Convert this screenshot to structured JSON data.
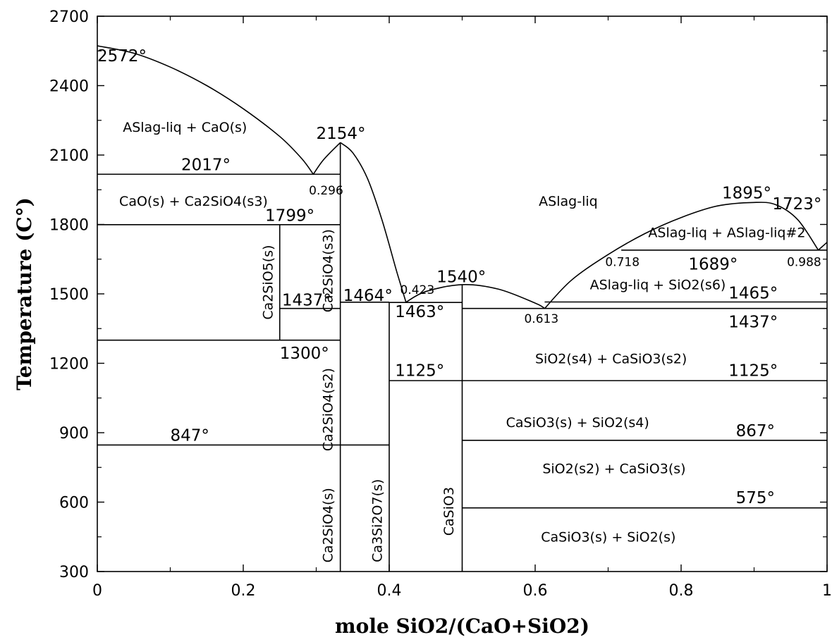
{
  "chart_data": {
    "type": "line",
    "title": "",
    "xlabel": "mole SiO2/(CaO+SiO2)",
    "ylabel": "Temperature (C°)",
    "xlim": [
      0,
      1
    ],
    "ylim": [
      300,
      2700
    ],
    "x_ticks": [
      "0",
      "0.2",
      "0.4",
      "0.6",
      "0.8",
      "1"
    ],
    "y_ticks": [
      "300",
      "600",
      "900",
      "1200",
      "1500",
      "1800",
      "2100",
      "2400",
      "2700"
    ],
    "grid": false,
    "series": [
      {
        "x": [
          0,
          0.05,
          0.1,
          0.15,
          0.2,
          0.25,
          0.28,
          0.296
        ],
        "y": [
          2572,
          2540,
          2480,
          2400,
          2300,
          2180,
          2085,
          2017
        ]
      },
      {
        "x": [
          0.296,
          0.31,
          0.333
        ],
        "y": [
          2017,
          2080,
          2154
        ]
      },
      {
        "x": [
          0.333,
          0.35,
          0.37,
          0.39,
          0.41,
          0.423
        ],
        "y": [
          2154,
          2110,
          2000,
          1820,
          1600,
          1464
        ]
      },
      {
        "x": [
          0.423,
          0.45,
          0.5,
          0.55,
          0.6,
          0.613
        ],
        "y": [
          1464,
          1510,
          1540,
          1520,
          1460,
          1437
        ]
      },
      {
        "x": [
          0.613,
          0.65,
          0.7,
          0.75,
          0.8,
          0.85,
          0.9,
          0.93,
          0.96,
          0.988
        ],
        "y": [
          1437,
          1560,
          1670,
          1760,
          1830,
          1880,
          1895,
          1885,
          1820,
          1689
        ]
      },
      {
        "x": [
          0.988,
          1
        ],
        "y": [
          1689,
          1723
        ]
      }
    ],
    "isotherms": [
      {
        "y": 2017,
        "x0": 0,
        "x1": 0.333
      },
      {
        "y": 1799,
        "x0": 0,
        "x1": 0.333
      },
      {
        "y": 1437,
        "x0": 0.25,
        "x1": 0.333
      },
      {
        "y": 1300,
        "x0": 0,
        "x1": 0.333
      },
      {
        "y": 847,
        "x0": 0,
        "x1": 0.4
      },
      {
        "y": 1464,
        "x0": 0.333,
        "x1": 0.4
      },
      {
        "y": 1463,
        "x0": 0.4,
        "x1": 0.5
      },
      {
        "y": 1689,
        "x0": 0.718,
        "x1": 1
      },
      {
        "y": 1465,
        "x0": 0.613,
        "x1": 1
      },
      {
        "y": 1437,
        "x0": 0.5,
        "x1": 1
      },
      {
        "y": 1125,
        "x0": 0.4,
        "x1": 1
      },
      {
        "y": 867,
        "x0": 0.5,
        "x1": 1
      },
      {
        "y": 575,
        "x0": 0.5,
        "x1": 1
      }
    ],
    "compound_lines": [
      {
        "x": 0.25,
        "y0": 1300,
        "y1": 1799
      },
      {
        "x": 0.333,
        "y0": 300,
        "y1": 2154
      },
      {
        "x": 0.4,
        "y0": 300,
        "y1": 1464
      },
      {
        "x": 0.5,
        "y0": 300,
        "y1": 1540
      }
    ],
    "annotations": [
      {
        "text": "2572°",
        "x": 0.0,
        "y": 2505
      },
      {
        "text": "2154°",
        "x": 0.3,
        "y": 2170
      },
      {
        "text": "2017°",
        "x": 0.115,
        "y": 2035
      },
      {
        "text": "0.296",
        "x": 0.29,
        "y": 1930
      },
      {
        "text": "1799°",
        "x": 0.23,
        "y": 1815
      },
      {
        "text": "1437°",
        "x": 0.253,
        "y": 1450
      },
      {
        "text": "1464°",
        "x": 0.337,
        "y": 1470
      },
      {
        "text": "0.423",
        "x": 0.415,
        "y": 1500
      },
      {
        "text": "1540°",
        "x": 0.465,
        "y": 1550
      },
      {
        "text": "1463°",
        "x": 0.408,
        "y": 1400
      },
      {
        "text": "1300°",
        "x": 0.25,
        "y": 1220
      },
      {
        "text": "1125°",
        "x": 0.408,
        "y": 1145
      },
      {
        "text": "847°",
        "x": 0.1,
        "y": 865
      },
      {
        "text": "0.613",
        "x": 0.585,
        "y": 1375
      },
      {
        "text": "0.718",
        "x": 0.696,
        "y": 1620
      },
      {
        "text": "1689°",
        "x": 0.81,
        "y": 1605
      },
      {
        "text": "0.988",
        "x": 0.945,
        "y": 1620
      },
      {
        "text": "1895°",
        "x": 0.856,
        "y": 1913
      },
      {
        "text": "1723°",
        "x": 0.925,
        "y": 1865
      },
      {
        "text": "1465°",
        "x": 0.865,
        "y": 1480
      },
      {
        "text": "1437°",
        "x": 0.865,
        "y": 1355
      },
      {
        "text": "1125°",
        "x": 0.865,
        "y": 1145
      },
      {
        "text": "867°",
        "x": 0.875,
        "y": 885
      },
      {
        "text": "575°",
        "x": 0.875,
        "y": 595
      }
    ],
    "region_labels": [
      {
        "text": "ASlag-liq + CaO(s)",
        "x": 0.035,
        "y": 2200
      },
      {
        "text": "CaO(s) + Ca2SiO4(s3)",
        "x": 0.03,
        "y": 1880
      },
      {
        "text": "ASlag-liq",
        "x": 0.605,
        "y": 1880
      },
      {
        "text": "ASlag-liq + ASlag-liq#2",
        "x": 0.755,
        "y": 1745
      },
      {
        "text": "ASlag-liq + SiO2(s6)",
        "x": 0.675,
        "y": 1520
      },
      {
        "text": "SiO2(s4) + CaSiO3(s2)",
        "x": 0.6,
        "y": 1200
      },
      {
        "text": "CaSiO3(s) + SiO2(s4)",
        "x": 0.56,
        "y": 925
      },
      {
        "text": "SiO2(s2) + CaSiO3(s)",
        "x": 0.61,
        "y": 725
      },
      {
        "text": "CaSiO3(s) + SiO2(s)",
        "x": 0.608,
        "y": 430
      }
    ],
    "vertical_labels": [
      {
        "text": "Ca2SiO5(s)",
        "x": 0.24,
        "y": 1550
      },
      {
        "text": "Ca2SiO4(s3)",
        "x": 0.322,
        "y": 1600
      },
      {
        "text": "Ca2SiO4(s2)",
        "x": 0.322,
        "y": 1000
      },
      {
        "text": "Ca2SiO4(s)",
        "x": 0.322,
        "y": 500
      },
      {
        "text": "Ca3Si2O7(s)",
        "x": 0.39,
        "y": 520
      },
      {
        "text": "CaSiO3",
        "x": 0.488,
        "y": 560
      }
    ]
  }
}
